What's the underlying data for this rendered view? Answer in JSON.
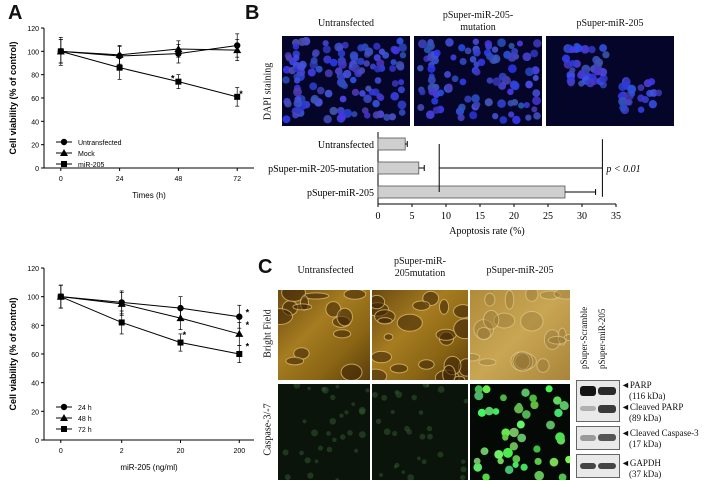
{
  "panels": {
    "A": {
      "letter": "A"
    },
    "B": {
      "letter": "B"
    },
    "C": {
      "letter": "C"
    }
  },
  "chart_data": [
    {
      "id": "A-top",
      "type": "line",
      "xlabel": "Times (h)",
      "ylabel": "Cell viability (% of control)",
      "x": [
        0,
        24,
        48,
        72
      ],
      "xlim": [
        0,
        72
      ],
      "ylim": [
        0,
        120
      ],
      "yticks": [
        "0",
        "20",
        "40",
        "60",
        "80",
        "100",
        "120"
      ],
      "xticks": [
        "0",
        "24",
        "48",
        "72"
      ],
      "series": [
        {
          "name": "Untransfected",
          "marker": "circle",
          "values": [
            100,
            96,
            98,
            105
          ],
          "err": [
            12,
            8,
            8,
            10
          ]
        },
        {
          "name": "Mock",
          "marker": "triangle",
          "values": [
            100,
            97,
            102,
            101
          ],
          "err": [
            10,
            8,
            7,
            9
          ]
        },
        {
          "name": "miR-205",
          "marker": "square",
          "values": [
            100,
            86,
            74,
            61
          ],
          "err": [
            10,
            10,
            6,
            8
          ]
        }
      ],
      "annotations": [
        "*",
        "*"
      ],
      "legend": "bottom-left"
    },
    {
      "id": "A-bottom",
      "type": "line",
      "xlabel": "miR-205 (ng/ml)",
      "ylabel": "Cell viability (% of control)",
      "categories": [
        "0",
        "2",
        "20",
        "200"
      ],
      "ylim": [
        0,
        120
      ],
      "yticks": [
        "0",
        "20",
        "40",
        "60",
        "80",
        "100",
        "120"
      ],
      "series": [
        {
          "name": "24 h",
          "marker": "circle",
          "values": [
            100,
            96,
            92,
            86
          ],
          "err": [
            8,
            8,
            8,
            8
          ]
        },
        {
          "name": "48 h",
          "marker": "triangle",
          "values": [
            100,
            95,
            85,
            74
          ],
          "err": [
            8,
            8,
            8,
            8
          ]
        },
        {
          "name": "72 h",
          "marker": "square",
          "values": [
            100,
            82,
            68,
            60
          ],
          "err": [
            8,
            8,
            6,
            6
          ]
        }
      ],
      "annotations": [
        "*",
        "*",
        "*",
        "*"
      ],
      "legend": "bottom-left"
    },
    {
      "id": "B-bar",
      "type": "bar",
      "orientation": "horizontal",
      "categories": [
        "Untransfected",
        "pSuper-miR-205-mutation",
        "pSuper-miR-205"
      ],
      "values": [
        4,
        6,
        27.5
      ],
      "err": [
        0.3,
        0.8,
        4.5
      ],
      "xlabel": "Apoptosis rate (%)",
      "xlim": [
        0,
        35
      ],
      "xticks": [
        "0",
        "5",
        "10",
        "15",
        "20",
        "25",
        "30",
        "35"
      ],
      "annotation": "p < 0.01"
    }
  ],
  "panelB": {
    "col_labels": [
      "Untransfected",
      "pSuper-miR-205-\nmutation",
      "pSuper-miR-205"
    ],
    "row_label": "DAPI staining"
  },
  "panelC": {
    "col_labels": [
      "Untransfected",
      "pSuper-miR-\n205mutation",
      "pSuper-miR-205"
    ],
    "row_labels": [
      "Bright Field",
      "Caspase-3/-7"
    ],
    "blot_lanes": [
      "pSuper-Scramble",
      "pSuper-miR-205"
    ],
    "blot_labels": [
      {
        "name": "PARP",
        "size": "(116 kDa)"
      },
      {
        "name": "Cleaved PARP",
        "size": "(89 kDa)"
      },
      {
        "name": "Cleaved Caspase-3",
        "size": "(17 kDa)"
      },
      {
        "name": "GAPDH",
        "size": "(37 kDa)"
      }
    ]
  }
}
